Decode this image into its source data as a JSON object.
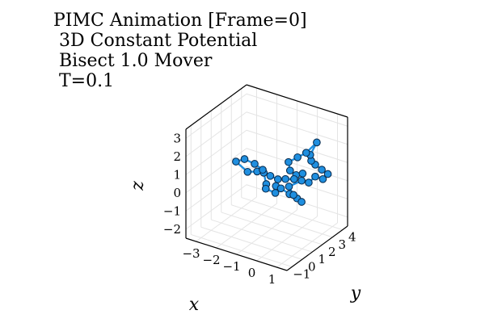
{
  "title_lines": [
    "PIMC Animation [Frame=0]",
    " 3D Constant Potential",
    " Bisect 1.0 Mover",
    " T=0.1"
  ],
  "chart_data": {
    "type": "scatter",
    "projection": "3d",
    "grid": true,
    "xlabel": "x",
    "ylabel": "y",
    "zlabel": "z",
    "xlim": [
      -3.5,
      1.5
    ],
    "ylim": [
      -1.5,
      4.5
    ],
    "zlim": [
      -2.5,
      3.5
    ],
    "x_ticks": [
      -3,
      -2,
      -1,
      0,
      1
    ],
    "y_ticks": [
      -1,
      0,
      1,
      2,
      3,
      4
    ],
    "z_ticks": [
      -2,
      -1,
      0,
      1,
      2,
      3
    ],
    "x_tick_labels": [
      "−3",
      "−2",
      "−1",
      "0",
      "1"
    ],
    "y_tick_labels": [
      "−1",
      "0",
      "1",
      "2",
      "3",
      "4"
    ],
    "z_tick_labels": [
      "−2",
      "−1",
      "0",
      "1",
      "2",
      "3"
    ],
    "colors": {
      "series": "#1f8fe0",
      "marker_edge": "#0b2f52"
    },
    "series": [
      {
        "closed": true,
        "marker": "circle",
        "points": [
          [
            -2.05,
            0.55,
            1.4
          ],
          [
            -1.55,
            0.7,
            0.95
          ],
          [
            -1.15,
            0.85,
            1.05
          ],
          [
            -0.95,
            1.1,
            0.95
          ],
          [
            -0.8,
            1.05,
            0.4
          ],
          [
            -0.9,
            1.2,
            0.05
          ],
          [
            -0.5,
            1.35,
            -0.1
          ],
          [
            -0.55,
            1.5,
            0.2
          ],
          [
            -0.35,
            1.6,
            0.1
          ],
          [
            0.0,
            1.75,
            -0.15
          ],
          [
            0.25,
            2.0,
            -0.4
          ],
          [
            0.4,
            2.15,
            -0.6
          ],
          [
            0.05,
            2.05,
            -0.3
          ],
          [
            -0.2,
            2.1,
            0.05
          ],
          [
            0.3,
            2.35,
            0.45
          ],
          [
            0.55,
            2.55,
            0.35
          ],
          [
            0.75,
            2.8,
            0.65
          ],
          [
            1.0,
            3.05,
            0.5
          ],
          [
            1.15,
            3.25,
            0.75
          ],
          [
            0.95,
            3.05,
            1.0
          ],
          [
            0.7,
            2.9,
            1.25
          ],
          [
            0.55,
            2.8,
            1.45
          ],
          [
            0.45,
            2.9,
            1.7
          ],
          [
            0.65,
            3.15,
            2.35
          ],
          [
            0.3,
            2.8,
            1.8
          ],
          [
            0.0,
            2.55,
            1.55
          ],
          [
            -0.3,
            2.25,
            1.3
          ],
          [
            -0.15,
            2.1,
            0.95
          ],
          [
            0.1,
            2.2,
            0.75
          ],
          [
            0.3,
            2.45,
            0.8
          ],
          [
            0.05,
            2.1,
            0.55
          ],
          [
            -0.25,
            1.85,
            0.55
          ],
          [
            -0.5,
            1.6,
            0.55
          ],
          [
            -0.75,
            1.35,
            0.75
          ],
          [
            -1.0,
            1.1,
            1.1
          ],
          [
            -1.3,
            0.9,
            1.4
          ],
          [
            -1.7,
            0.7,
            1.6
          ]
        ]
      }
    ]
  }
}
